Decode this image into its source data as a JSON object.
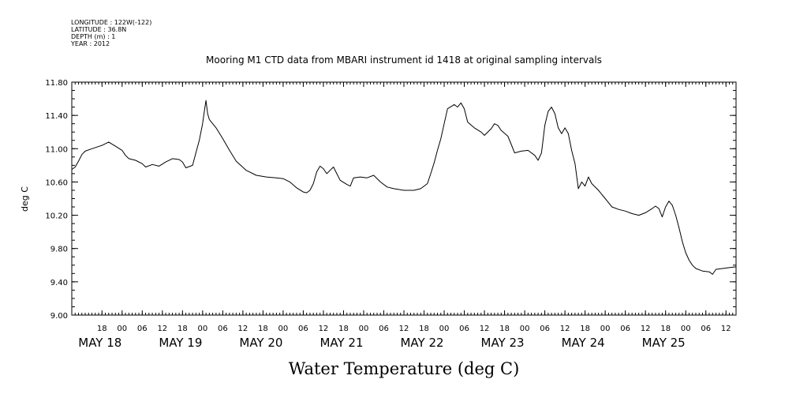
{
  "header": {
    "longitude": "LONGITUDE : 122W(-122)",
    "latitude": "LATITUDE : 36.8N",
    "depth": "DEPTH (m) : 1",
    "year": "YEAR : 2012"
  },
  "chart_data": {
    "type": "line",
    "title": "Mooring M1 CTD data from MBARI instrument id 1418 at original sampling intervals",
    "xlabel": "Water Temperature (deg C)",
    "ylabel": "deg C",
    "ylim": [
      9.0,
      11.8
    ],
    "xlim": [
      "2012-05-17T09:00",
      "2012-05-25T15:00"
    ],
    "y_ticks": [
      "9.00",
      "9.40",
      "9.80",
      "10.20",
      "10.60",
      "11.00",
      "11.40",
      "11.80"
    ],
    "x_hour_ticks": [
      {
        "t": "2012-05-17T18:00",
        "label": "18"
      },
      {
        "t": "2012-05-18T00:00",
        "label": "00"
      },
      {
        "t": "2012-05-18T06:00",
        "label": "06"
      },
      {
        "t": "2012-05-18T12:00",
        "label": "12"
      },
      {
        "t": "2012-05-18T18:00",
        "label": "18"
      },
      {
        "t": "2012-05-19T00:00",
        "label": "00"
      },
      {
        "t": "2012-05-19T06:00",
        "label": "06"
      },
      {
        "t": "2012-05-19T12:00",
        "label": "12"
      },
      {
        "t": "2012-05-19T18:00",
        "label": "18"
      },
      {
        "t": "2012-05-20T00:00",
        "label": "00"
      },
      {
        "t": "2012-05-20T06:00",
        "label": "06"
      },
      {
        "t": "2012-05-20T12:00",
        "label": "12"
      },
      {
        "t": "2012-05-20T18:00",
        "label": "18"
      },
      {
        "t": "2012-05-21T00:00",
        "label": "00"
      },
      {
        "t": "2012-05-21T06:00",
        "label": "06"
      },
      {
        "t": "2012-05-21T12:00",
        "label": "12"
      },
      {
        "t": "2012-05-21T18:00",
        "label": "18"
      },
      {
        "t": "2012-05-22T00:00",
        "label": "00"
      },
      {
        "t": "2012-05-22T06:00",
        "label": "06"
      },
      {
        "t": "2012-05-22T12:00",
        "label": "12"
      },
      {
        "t": "2012-05-22T18:00",
        "label": "18"
      },
      {
        "t": "2012-05-23T00:00",
        "label": "00"
      },
      {
        "t": "2012-05-23T06:00",
        "label": "06"
      },
      {
        "t": "2012-05-23T12:00",
        "label": "12"
      },
      {
        "t": "2012-05-23T18:00",
        "label": "18"
      },
      {
        "t": "2012-05-24T00:00",
        "label": "00"
      },
      {
        "t": "2012-05-24T06:00",
        "label": "06"
      },
      {
        "t": "2012-05-24T12:00",
        "label": "12"
      },
      {
        "t": "2012-05-24T18:00",
        "label": "18"
      },
      {
        "t": "2012-05-25T00:00",
        "label": "00"
      },
      {
        "t": "2012-05-25T06:00",
        "label": "06"
      },
      {
        "t": "2012-05-25T12:00",
        "label": "12"
      }
    ],
    "x_day_labels": [
      {
        "t": "2012-05-18T00:00",
        "label": "MAY 18"
      },
      {
        "t": "2012-05-19T00:00",
        "label": "MAY 19"
      },
      {
        "t": "2012-05-20T00:00",
        "label": "MAY 20"
      },
      {
        "t": "2012-05-21T00:00",
        "label": "MAY 21"
      },
      {
        "t": "2012-05-22T00:00",
        "label": "MAY 22"
      },
      {
        "t": "2012-05-23T00:00",
        "label": "MAY 23"
      },
      {
        "t": "2012-05-24T00:00",
        "label": "MAY 24"
      },
      {
        "t": "2012-05-25T00:00",
        "label": "MAY 25"
      }
    ],
    "grid": false,
    "series": [
      {
        "color": "#000000",
        "points": [
          [
            "2012-05-17T09:00",
            10.75
          ],
          [
            "2012-05-17T10:00",
            10.78
          ],
          [
            "2012-05-17T11:00",
            10.85
          ],
          [
            "2012-05-17T12:00",
            10.93
          ],
          [
            "2012-05-17T13:00",
            10.97
          ],
          [
            "2012-05-17T15:00",
            11.0
          ],
          [
            "2012-05-17T18:00",
            11.04
          ],
          [
            "2012-05-17T20:00",
            11.08
          ],
          [
            "2012-05-17T22:00",
            11.03
          ],
          [
            "2012-05-18T00:00",
            10.98
          ],
          [
            "2012-05-18T01:00",
            10.92
          ],
          [
            "2012-05-18T02:00",
            10.88
          ],
          [
            "2012-05-18T04:00",
            10.86
          ],
          [
            "2012-05-18T06:00",
            10.82
          ],
          [
            "2012-05-18T07:00",
            10.78
          ],
          [
            "2012-05-18T09:00",
            10.81
          ],
          [
            "2012-05-18T11:00",
            10.79
          ],
          [
            "2012-05-18T13:00",
            10.84
          ],
          [
            "2012-05-18T15:00",
            10.88
          ],
          [
            "2012-05-18T17:00",
            10.87
          ],
          [
            "2012-05-18T18:00",
            10.84
          ],
          [
            "2012-05-18T19:00",
            10.77
          ],
          [
            "2012-05-18T21:00",
            10.8
          ],
          [
            "2012-05-18T22:00",
            10.95
          ],
          [
            "2012-05-18T23:00",
            11.1
          ],
          [
            "2012-05-19T00:00",
            11.3
          ],
          [
            "2012-05-19T00:30",
            11.45
          ],
          [
            "2012-05-19T01:00",
            11.58
          ],
          [
            "2012-05-19T01:30",
            11.42
          ],
          [
            "2012-05-19T02:00",
            11.35
          ],
          [
            "2012-05-19T04:00",
            11.25
          ],
          [
            "2012-05-19T06:00",
            11.12
          ],
          [
            "2012-05-19T08:00",
            10.98
          ],
          [
            "2012-05-19T10:00",
            10.85
          ],
          [
            "2012-05-19T13:00",
            10.74
          ],
          [
            "2012-05-19T16:00",
            10.68
          ],
          [
            "2012-05-19T19:00",
            10.66
          ],
          [
            "2012-05-19T22:00",
            10.65
          ],
          [
            "2012-05-20T00:00",
            10.64
          ],
          [
            "2012-05-20T02:00",
            10.6
          ],
          [
            "2012-05-20T04:00",
            10.53
          ],
          [
            "2012-05-20T06:00",
            10.48
          ],
          [
            "2012-05-20T07:00",
            10.47
          ],
          [
            "2012-05-20T08:00",
            10.5
          ],
          [
            "2012-05-20T09:00",
            10.58
          ],
          [
            "2012-05-20T10:00",
            10.72
          ],
          [
            "2012-05-20T11:00",
            10.79
          ],
          [
            "2012-05-20T12:00",
            10.76
          ],
          [
            "2012-05-20T13:00",
            10.7
          ],
          [
            "2012-05-20T14:00",
            10.74
          ],
          [
            "2012-05-20T15:00",
            10.78
          ],
          [
            "2012-05-20T16:00",
            10.7
          ],
          [
            "2012-05-20T17:00",
            10.62
          ],
          [
            "2012-05-20T19:00",
            10.57
          ],
          [
            "2012-05-20T20:00",
            10.55
          ],
          [
            "2012-05-20T21:00",
            10.65
          ],
          [
            "2012-05-20T23:00",
            10.66
          ],
          [
            "2012-05-21T01:00",
            10.65
          ],
          [
            "2012-05-21T03:00",
            10.68
          ],
          [
            "2012-05-21T05:00",
            10.6
          ],
          [
            "2012-05-21T07:00",
            10.54
          ],
          [
            "2012-05-21T09:00",
            10.52
          ],
          [
            "2012-05-21T12:00",
            10.5
          ],
          [
            "2012-05-21T15:00",
            10.5
          ],
          [
            "2012-05-21T17:00",
            10.52
          ],
          [
            "2012-05-21T19:00",
            10.58
          ],
          [
            "2012-05-21T20:00",
            10.7
          ],
          [
            "2012-05-21T21:00",
            10.83
          ],
          [
            "2012-05-21T22:00",
            10.98
          ],
          [
            "2012-05-21T23:00",
            11.12
          ],
          [
            "2012-05-22T00:00",
            11.3
          ],
          [
            "2012-05-22T01:00",
            11.48
          ],
          [
            "2012-05-22T03:00",
            11.53
          ],
          [
            "2012-05-22T04:00",
            11.5
          ],
          [
            "2012-05-22T05:00",
            11.55
          ],
          [
            "2012-05-22T06:00",
            11.48
          ],
          [
            "2012-05-22T07:00",
            11.32
          ],
          [
            "2012-05-22T09:00",
            11.25
          ],
          [
            "2012-05-22T11:00",
            11.2
          ],
          [
            "2012-05-22T12:00",
            11.16
          ],
          [
            "2012-05-22T14:00",
            11.24
          ],
          [
            "2012-05-22T15:00",
            11.3
          ],
          [
            "2012-05-22T16:00",
            11.28
          ],
          [
            "2012-05-22T17:00",
            11.22
          ],
          [
            "2012-05-22T19:00",
            11.15
          ],
          [
            "2012-05-22T20:00",
            11.05
          ],
          [
            "2012-05-22T21:00",
            10.95
          ],
          [
            "2012-05-22T23:00",
            10.97
          ],
          [
            "2012-05-23T01:00",
            10.98
          ],
          [
            "2012-05-23T03:00",
            10.92
          ],
          [
            "2012-05-23T04:00",
            10.86
          ],
          [
            "2012-05-23T05:00",
            10.95
          ],
          [
            "2012-05-23T06:00",
            11.28
          ],
          [
            "2012-05-23T07:00",
            11.45
          ],
          [
            "2012-05-23T08:00",
            11.5
          ],
          [
            "2012-05-23T09:00",
            11.42
          ],
          [
            "2012-05-23T10:00",
            11.25
          ],
          [
            "2012-05-23T11:00",
            11.18
          ],
          [
            "2012-05-23T12:00",
            11.25
          ],
          [
            "2012-05-23T13:00",
            11.18
          ],
          [
            "2012-05-23T14:00",
            10.98
          ],
          [
            "2012-05-23T15:00",
            10.82
          ],
          [
            "2012-05-23T16:00",
            10.52
          ],
          [
            "2012-05-23T17:00",
            10.6
          ],
          [
            "2012-05-23T18:00",
            10.55
          ],
          [
            "2012-05-23T19:00",
            10.66
          ],
          [
            "2012-05-23T20:00",
            10.58
          ],
          [
            "2012-05-23T22:00",
            10.5
          ],
          [
            "2012-05-24T00:00",
            10.4
          ],
          [
            "2012-05-24T02:00",
            10.3
          ],
          [
            "2012-05-24T04:00",
            10.27
          ],
          [
            "2012-05-24T06:00",
            10.25
          ],
          [
            "2012-05-24T08:00",
            10.22
          ],
          [
            "2012-05-24T10:00",
            10.2
          ],
          [
            "2012-05-24T12:00",
            10.23
          ],
          [
            "2012-05-24T14:00",
            10.28
          ],
          [
            "2012-05-24T15:00",
            10.31
          ],
          [
            "2012-05-24T16:00",
            10.28
          ],
          [
            "2012-05-24T17:00",
            10.18
          ],
          [
            "2012-05-24T18:00",
            10.3
          ],
          [
            "2012-05-24T19:00",
            10.37
          ],
          [
            "2012-05-24T20:00",
            10.32
          ],
          [
            "2012-05-24T21:00",
            10.2
          ],
          [
            "2012-05-24T22:00",
            10.05
          ],
          [
            "2012-05-24T23:00",
            9.88
          ],
          [
            "2012-05-25T00:00",
            9.75
          ],
          [
            "2012-05-25T01:00",
            9.66
          ],
          [
            "2012-05-25T02:00",
            9.6
          ],
          [
            "2012-05-25T03:00",
            9.56
          ],
          [
            "2012-05-25T05:00",
            9.53
          ],
          [
            "2012-05-25T07:00",
            9.52
          ],
          [
            "2012-05-25T08:00",
            9.49
          ],
          [
            "2012-05-25T09:00",
            9.55
          ],
          [
            "2012-05-25T11:00",
            9.56
          ],
          [
            "2012-05-25T13:00",
            9.57
          ],
          [
            "2012-05-25T15:00",
            9.58
          ]
        ]
      }
    ]
  }
}
